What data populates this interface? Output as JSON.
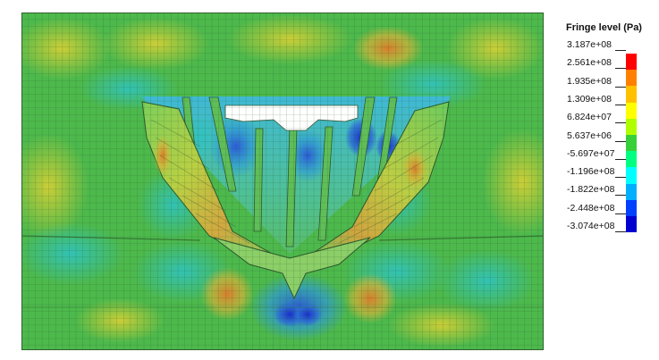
{
  "legend": {
    "title": "Fringe level (Pa)",
    "levels": [
      "3.187e+08",
      "2.561e+08",
      "1.935e+08",
      "1.309e+08",
      "6.824e+07",
      "5.637e+06",
      "-5.697e+07",
      "-1.196e+08",
      "-1.822e+08",
      "-2.448e+08",
      "-3.074e+08"
    ],
    "colors": [
      "#ff0000",
      "#ff8000",
      "#ffc000",
      "#ffff00",
      "#b0ff00",
      "#38d038",
      "#00ff80",
      "#00ffff",
      "#00b0ff",
      "#0040ff",
      "#0000d0"
    ]
  },
  "contour_colors": {
    "base": "#49b84a",
    "hot_yellow": "#c8cf3a",
    "hot_orange": "#e2a03a",
    "cool_cyan": "#33c1b0",
    "cool_blue": "#2e8fd8",
    "deep_blue": "#1c3bd0",
    "mesh_line": "#2a5a2a"
  }
}
